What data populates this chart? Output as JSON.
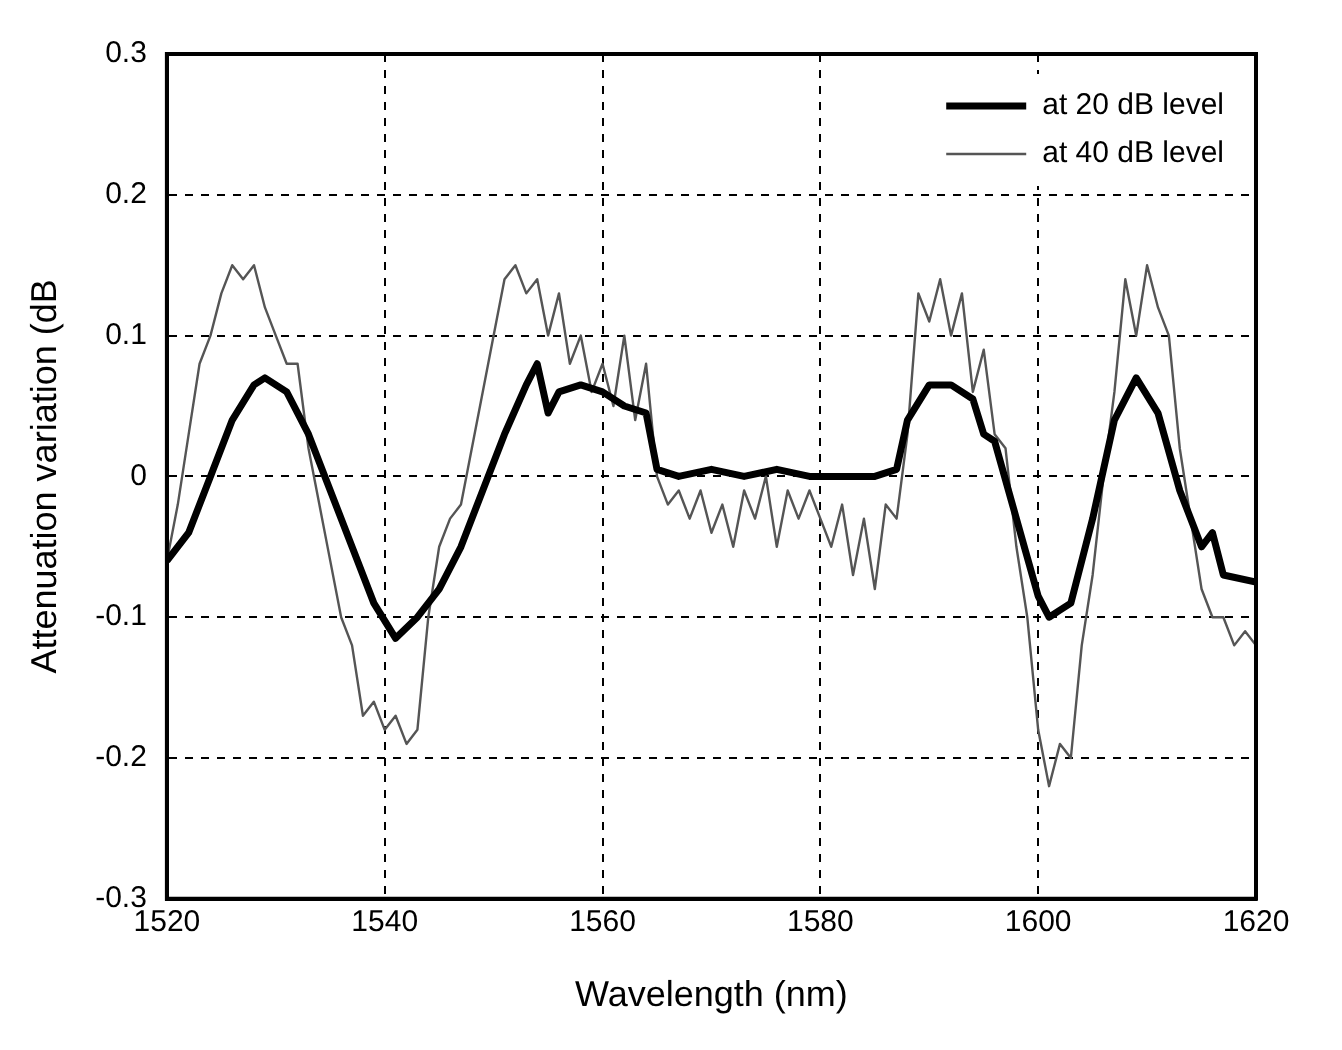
{
  "chart_data": {
    "type": "line",
    "xlabel": "Wavelength (nm)",
    "ylabel": "Attenuation variation (dB",
    "xlim": [
      1520,
      1620
    ],
    "xticks": [
      1520,
      1540,
      1560,
      1580,
      1600,
      1620
    ],
    "ylim": [
      -0.3,
      0.3
    ],
    "yticks": [
      -0.3,
      -0.2,
      -0.1,
      0,
      0.1,
      0.2,
      0.3
    ],
    "grid": true,
    "legend": "top right",
    "marker": "none",
    "line_style": "solid",
    "series": [
      {
        "name": "at 20 dB level",
        "color": "#000000",
        "x": [
          1520,
          1522,
          1524,
          1526,
          1528,
          1529,
          1531,
          1533,
          1535,
          1537,
          1539,
          1541,
          1543,
          1545,
          1547,
          1549,
          1551,
          1553,
          1554,
          1555,
          1556,
          1558,
          1560,
          1562,
          1564,
          1565,
          1567,
          1570,
          1573,
          1576,
          1579,
          1582,
          1585,
          1587,
          1588,
          1590,
          1592,
          1594,
          1595,
          1596,
          1598,
          1600,
          1601,
          1602,
          1603,
          1605,
          1607,
          1609,
          1611,
          1613,
          1615,
          1616,
          1617,
          1620
        ],
        "values": [
          -0.06,
          -0.04,
          0.0,
          0.04,
          0.065,
          0.07,
          0.06,
          0.03,
          -0.01,
          -0.05,
          -0.09,
          -0.115,
          -0.1,
          -0.08,
          -0.05,
          -0.01,
          0.03,
          0.065,
          0.08,
          0.045,
          0.06,
          0.065,
          0.06,
          0.05,
          0.045,
          0.005,
          0.0,
          0.005,
          0.0,
          0.005,
          0.0,
          0.0,
          0.0,
          0.005,
          0.04,
          0.065,
          0.065,
          0.055,
          0.03,
          0.025,
          -0.03,
          -0.085,
          -0.1,
          -0.095,
          -0.09,
          -0.03,
          0.04,
          0.07,
          0.045,
          -0.01,
          -0.05,
          -0.04,
          -0.07,
          -0.075
        ]
      },
      {
        "name": "at 40 dB level",
        "color": "#555555",
        "x": [
          1520,
          1521,
          1522,
          1523,
          1524,
          1525,
          1526,
          1527,
          1528,
          1529,
          1530,
          1531,
          1532,
          1533,
          1534,
          1535,
          1536,
          1537,
          1538,
          1539,
          1540,
          1541,
          1542,
          1543,
          1544,
          1545,
          1546,
          1547,
          1548,
          1549,
          1550,
          1551,
          1552,
          1553,
          1554,
          1555,
          1556,
          1557,
          1558,
          1559,
          1560,
          1561,
          1562,
          1563,
          1564,
          1565,
          1566,
          1567,
          1568,
          1569,
          1570,
          1571,
          1572,
          1573,
          1574,
          1575,
          1576,
          1577,
          1578,
          1579,
          1580,
          1581,
          1582,
          1583,
          1584,
          1585,
          1586,
          1587,
          1588,
          1589,
          1590,
          1591,
          1592,
          1593,
          1594,
          1595,
          1596,
          1597,
          1598,
          1599,
          1600,
          1601,
          1602,
          1603,
          1604,
          1605,
          1606,
          1607,
          1608,
          1609,
          1610,
          1611,
          1612,
          1613,
          1614,
          1615,
          1616,
          1617,
          1618,
          1619,
          1620
        ],
        "values": [
          -0.06,
          -0.02,
          0.03,
          0.08,
          0.1,
          0.13,
          0.15,
          0.14,
          0.15,
          0.12,
          0.1,
          0.08,
          0.08,
          0.02,
          -0.02,
          -0.06,
          -0.1,
          -0.12,
          -0.17,
          -0.16,
          -0.18,
          -0.17,
          -0.19,
          -0.18,
          -0.1,
          -0.05,
          -0.03,
          -0.02,
          0.02,
          0.06,
          0.1,
          0.14,
          0.15,
          0.13,
          0.14,
          0.1,
          0.13,
          0.08,
          0.1,
          0.06,
          0.08,
          0.05,
          0.1,
          0.04,
          0.08,
          0.0,
          -0.02,
          -0.01,
          -0.03,
          -0.01,
          -0.04,
          -0.02,
          -0.05,
          -0.01,
          -0.03,
          0.0,
          -0.05,
          -0.01,
          -0.03,
          -0.01,
          -0.03,
          -0.05,
          -0.02,
          -0.07,
          -0.03,
          -0.08,
          -0.02,
          -0.03,
          0.03,
          0.13,
          0.11,
          0.14,
          0.1,
          0.13,
          0.06,
          0.09,
          0.03,
          0.02,
          -0.05,
          -0.1,
          -0.18,
          -0.22,
          -0.19,
          -0.2,
          -0.12,
          -0.07,
          0.0,
          0.06,
          0.14,
          0.1,
          0.15,
          0.12,
          0.1,
          0.02,
          -0.03,
          -0.08,
          -0.1,
          -0.1,
          -0.12,
          -0.11,
          -0.12
        ]
      }
    ]
  }
}
